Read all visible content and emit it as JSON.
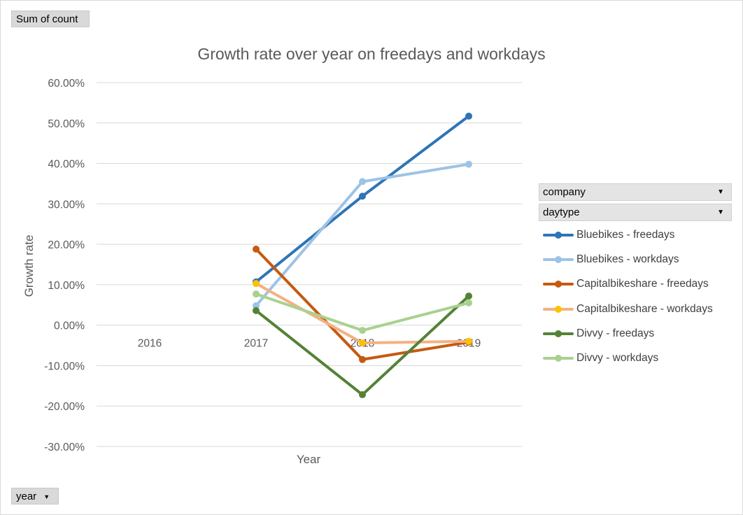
{
  "pivot": {
    "value_button": "Sum of count",
    "axis_button": "year",
    "legend_fields": [
      "company",
      "daytype"
    ]
  },
  "chart_data": {
    "type": "line",
    "title": "Growth rate over year on freedays and workdays",
    "xlabel": "Year",
    "ylabel": "Growth rate",
    "categories": [
      "2016",
      "2017",
      "2018",
      "2019"
    ],
    "ylim": [
      -0.3,
      0.6
    ],
    "yticks": [
      0.6,
      0.5,
      0.4,
      0.3,
      0.2,
      0.1,
      0.0,
      -0.1,
      -0.2,
      -0.3
    ],
    "ytick_labels": [
      "60.00%",
      "50.00%",
      "40.00%",
      "30.00%",
      "20.00%",
      "10.00%",
      "0.00%",
      "-10.00%",
      "-20.00%",
      "-30.00%"
    ],
    "grid": true,
    "legend_position": "right",
    "series": [
      {
        "name": "Bluebikes - freedays",
        "color": "#2e75b6",
        "values": [
          null,
          0.107,
          0.319,
          0.517
        ]
      },
      {
        "name": "Bluebikes - workdays",
        "color": "#9dc3e6",
        "values": [
          null,
          0.048,
          0.355,
          0.398
        ]
      },
      {
        "name": "Capitalbikeshare - freedays",
        "color": "#c55a11",
        "values": [
          null,
          0.188,
          -0.085,
          -0.042
        ]
      },
      {
        "name": "Capitalbikeshare - workdays",
        "color": "#f4b183",
        "marker_color": "#ffc000",
        "values": [
          null,
          0.103,
          -0.044,
          -0.04
        ]
      },
      {
        "name": "Divvy - freedays",
        "color": "#548235",
        "values": [
          null,
          0.036,
          -0.172,
          0.072
        ]
      },
      {
        "name": "Divvy - workdays",
        "color": "#a9d18e",
        "values": [
          null,
          0.077,
          -0.013,
          0.055
        ]
      }
    ]
  }
}
